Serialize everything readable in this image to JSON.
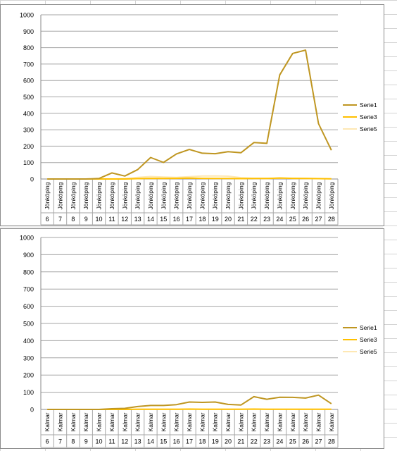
{
  "chart_data": [
    {
      "type": "line",
      "ylim": [
        0,
        1000
      ],
      "yticks": [
        0,
        100,
        200,
        300,
        400,
        500,
        600,
        700,
        800,
        900,
        1000
      ],
      "grid": true,
      "legend": "right",
      "category_label": "Jönköping",
      "categories": [
        "6",
        "7",
        "8",
        "9",
        "10",
        "11",
        "12",
        "13",
        "14",
        "15",
        "16",
        "17",
        "18",
        "19",
        "20",
        "21",
        "22",
        "23",
        "24",
        "25",
        "26",
        "27",
        "28"
      ],
      "series": [
        {
          "name": "Serie1",
          "color": "#bf9621",
          "values": [
            0,
            0,
            0,
            0,
            3,
            37,
            18,
            57,
            131,
            101,
            153,
            180,
            157,
            154,
            166,
            160,
            222,
            217,
            634,
            765,
            785,
            337,
            175
          ]
        },
        {
          "name": "Serie3",
          "color": "#ffc000",
          "values": [
            0,
            0,
            0,
            0,
            0,
            0,
            0,
            2,
            4,
            3,
            4,
            5,
            4,
            3,
            3,
            2,
            3,
            3,
            6,
            4,
            3,
            2,
            1
          ]
        },
        {
          "name": "Serie5",
          "color": "#fee8b4",
          "values": [
            0,
            0,
            0,
            0,
            0,
            0,
            2,
            10,
            15,
            12,
            10,
            14,
            18,
            19,
            17,
            8,
            4,
            3,
            5,
            4,
            3,
            2,
            1
          ]
        }
      ]
    },
    {
      "type": "line",
      "ylim": [
        0,
        1000
      ],
      "yticks": [
        0,
        100,
        200,
        300,
        400,
        500,
        600,
        700,
        800,
        900,
        1000
      ],
      "grid": true,
      "legend": "right",
      "category_label": "Kalmar",
      "categories": [
        "6",
        "7",
        "8",
        "9",
        "10",
        "11",
        "12",
        "13",
        "14",
        "15",
        "16",
        "17",
        "18",
        "19",
        "20",
        "21",
        "22",
        "23",
        "24",
        "25",
        "26",
        "27",
        "28"
      ],
      "series": [
        {
          "name": "Serie1",
          "color": "#bf9621",
          "values": [
            0,
            0,
            0,
            0,
            0,
            4,
            6,
            17,
            23,
            23,
            28,
            43,
            41,
            43,
            29,
            26,
            74,
            59,
            71,
            70,
            66,
            83,
            33
          ]
        },
        {
          "name": "Serie3",
          "color": "#ffc000",
          "values": [
            0,
            0,
            0,
            0,
            0,
            0,
            0,
            1,
            1,
            1,
            1,
            2,
            1,
            1,
            1,
            1,
            2,
            1,
            1,
            1,
            1,
            1,
            1
          ]
        },
        {
          "name": "Serie5",
          "color": "#fee8b4",
          "values": [
            0,
            0,
            0,
            0,
            0,
            0,
            0,
            1,
            1,
            1,
            1,
            1,
            1,
            1,
            1,
            1,
            1,
            1,
            1,
            1,
            1,
            1,
            1
          ]
        }
      ]
    }
  ]
}
